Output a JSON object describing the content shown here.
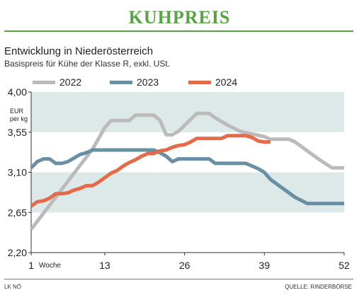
{
  "header": {
    "title": "KUHPREIS"
  },
  "chart_data": {
    "type": "line",
    "title": "Entwicklung in Niederösterreich",
    "subtitle": "Basispreis für Kühe der Klasse R, exkl. USt.",
    "ylabel": "EUR per kg",
    "xlabel": "Woche",
    "ylim": [
      2.2,
      4.0
    ],
    "xlim": [
      1,
      52
    ],
    "y_ticks": [
      "4,00",
      "3,55",
      "3,10",
      "2,65",
      "2,20"
    ],
    "y_tick_values": [
      4.0,
      3.55,
      3.1,
      2.65,
      2.2
    ],
    "x_ticks": [
      "1",
      "13",
      "26",
      "39",
      "52"
    ],
    "x_tick_values": [
      1,
      13,
      26,
      39,
      52
    ],
    "legend_position": "top",
    "series": [
      {
        "name": "2022",
        "color": "#bbbbbb",
        "x": [
          1,
          3,
          5,
          7,
          9,
          11,
          13,
          14,
          17,
          18,
          21,
          22,
          23,
          24,
          25,
          28,
          30,
          31,
          33,
          35,
          37,
          39,
          40,
          43,
          44,
          46,
          48,
          50,
          52
        ],
        "y": [
          2.46,
          2.64,
          2.82,
          3.0,
          3.18,
          3.36,
          3.6,
          3.68,
          3.68,
          3.74,
          3.74,
          3.68,
          3.52,
          3.52,
          3.56,
          3.76,
          3.76,
          3.71,
          3.63,
          3.56,
          3.53,
          3.5,
          3.47,
          3.47,
          3.44,
          3.34,
          3.24,
          3.15,
          3.15
        ]
      },
      {
        "name": "2023",
        "color": "#6a8ea3",
        "x": [
          1,
          2,
          3,
          4,
          5,
          6,
          7,
          9,
          10,
          11,
          21,
          22,
          23,
          24,
          25,
          30,
          31,
          36,
          37,
          38,
          39,
          40,
          42,
          44,
          46,
          52
        ],
        "y": [
          3.15,
          3.22,
          3.25,
          3.25,
          3.2,
          3.2,
          3.22,
          3.3,
          3.32,
          3.35,
          3.35,
          3.32,
          3.28,
          3.22,
          3.25,
          3.25,
          3.2,
          3.2,
          3.17,
          3.14,
          3.1,
          3.02,
          2.92,
          2.82,
          2.75,
          2.75
        ]
      },
      {
        "name": "2024",
        "color": "#e46a4a",
        "x": [
          1,
          2,
          3,
          4,
          5,
          6,
          7,
          8,
          9,
          10,
          11,
          12,
          13,
          14,
          15,
          16,
          17,
          18,
          19,
          20,
          21,
          22,
          23,
          24,
          25,
          26,
          27,
          28,
          29,
          30,
          31,
          32,
          33,
          34,
          35,
          36,
          37,
          38,
          39,
          40
        ],
        "y": [
          2.72,
          2.77,
          2.78,
          2.81,
          2.86,
          2.86,
          2.87,
          2.9,
          2.92,
          2.95,
          2.95,
          2.99,
          3.04,
          3.09,
          3.12,
          3.17,
          3.21,
          3.24,
          3.28,
          3.31,
          3.31,
          3.34,
          3.35,
          3.38,
          3.4,
          3.41,
          3.44,
          3.48,
          3.48,
          3.48,
          3.48,
          3.48,
          3.51,
          3.51,
          3.51,
          3.51,
          3.49,
          3.45,
          3.44,
          3.44
        ]
      }
    ],
    "bands_color": "#dce9e8"
  },
  "footer": {
    "left": "LK NÖ",
    "right": "QUELLE: RINDERBÖRSE"
  }
}
